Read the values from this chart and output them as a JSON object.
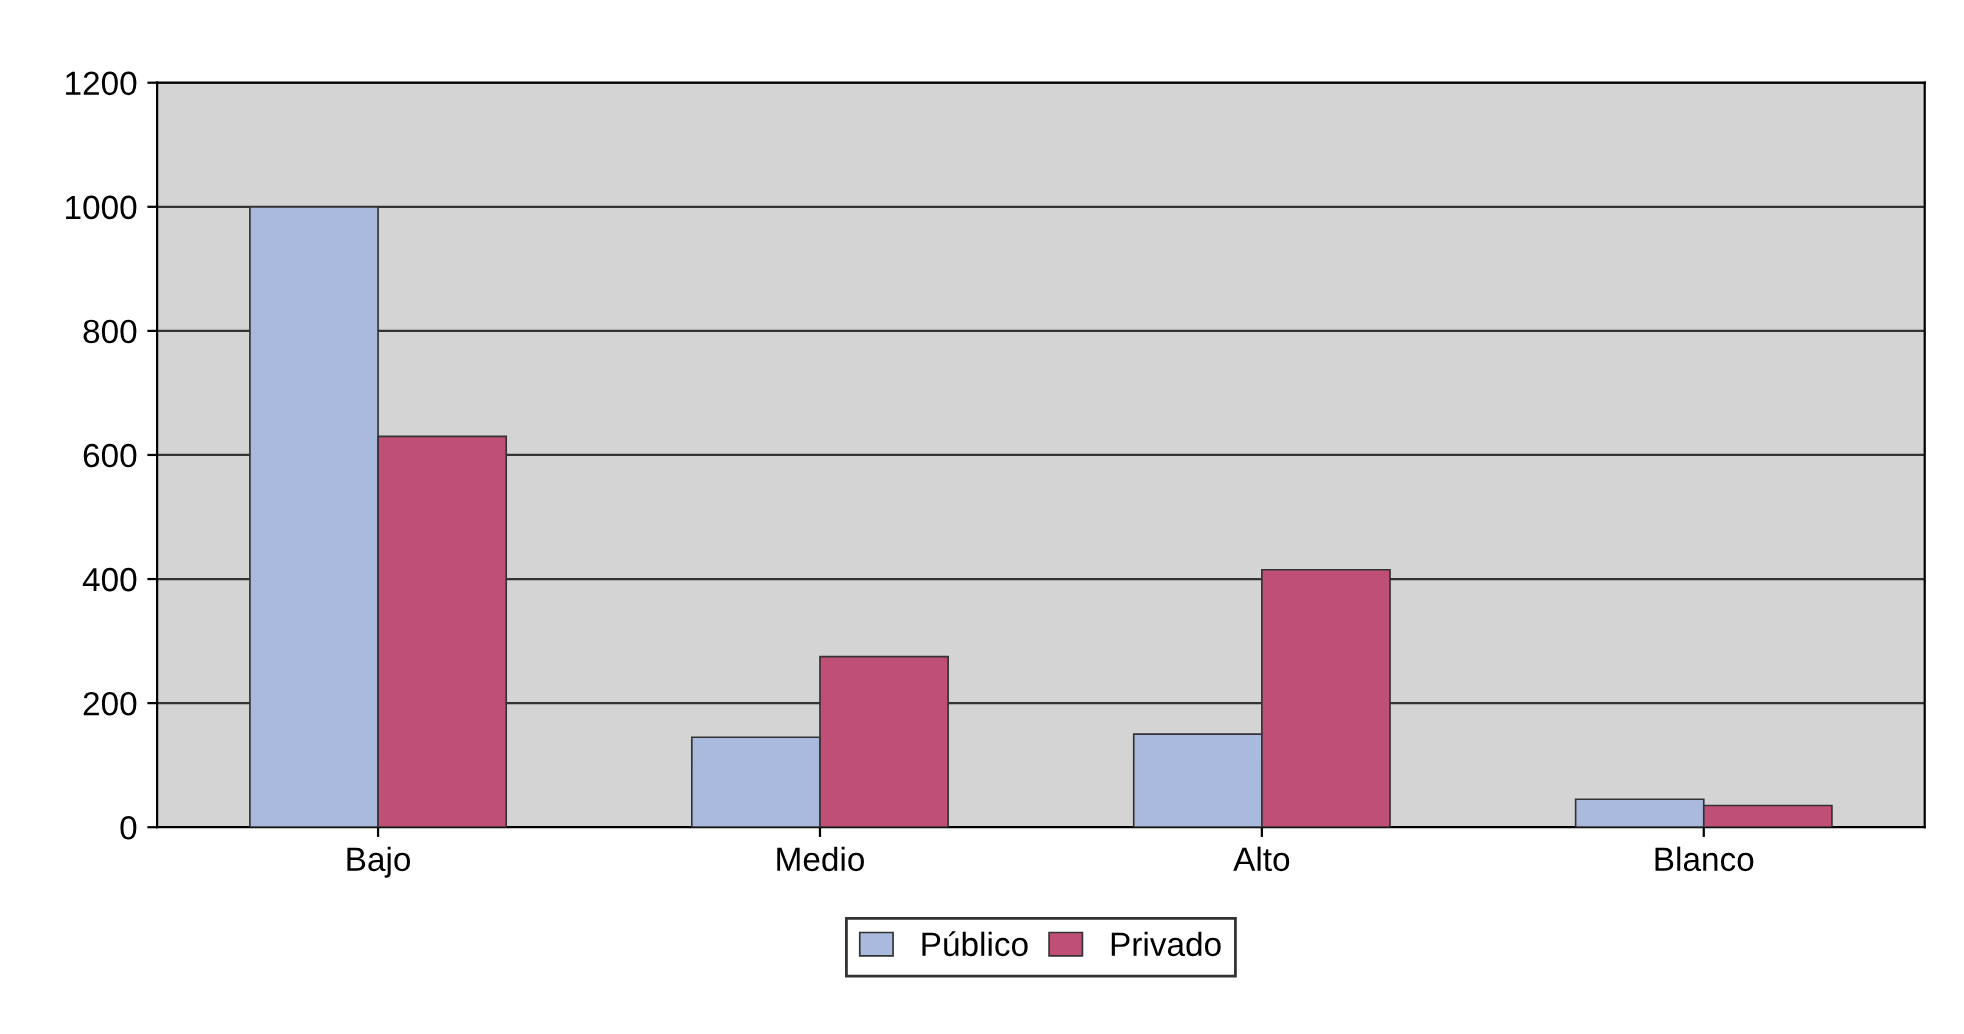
{
  "chart_data": {
    "type": "bar",
    "categories": [
      "Bajo",
      "Medio",
      "Alto",
      "Blanco"
    ],
    "series": [
      {
        "name": "Público",
        "color": "#aab9de",
        "values": [
          1000,
          145,
          150,
          45
        ]
      },
      {
        "name": "Privado",
        "color": "#c04f77",
        "values": [
          630,
          275,
          415,
          35
        ]
      }
    ],
    "ylim": [
      0,
      1200
    ],
    "yticks": [
      0,
      200,
      400,
      600,
      800,
      1000,
      1200
    ],
    "grid": "y",
    "legend": "bottom"
  }
}
